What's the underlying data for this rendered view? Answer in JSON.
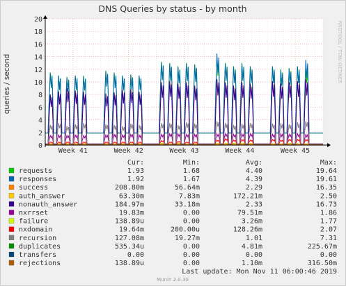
{
  "chart_data": {
    "type": "line",
    "title": "DNS Queries by status - by month",
    "ylabel": "queries / second",
    "side_label": "RRDTOOL / TOBI OETIKER",
    "ylim": [
      0,
      20
    ],
    "y_ticks": [
      0,
      2,
      4,
      6,
      8,
      10,
      12,
      14,
      16,
      18,
      20
    ],
    "x_ticks": [
      "Week 41",
      "Week 42",
      "Week 43",
      "Week 44",
      "Week 45"
    ],
    "x_tick_pos": [
      0.5,
      1.5,
      2.5,
      3.5,
      4.5
    ],
    "x_range": [
      0,
      5.0
    ],
    "active_days": [
      [
        0.1,
        0.25,
        0.4,
        0.55,
        0.7
      ],
      [
        1.1,
        1.25,
        1.4,
        1.55,
        1.7
      ],
      [
        2.1,
        2.25,
        2.4,
        2.55,
        2.7
      ],
      [
        3.1,
        3.25,
        3.4,
        3.55,
        3.7
      ],
      [
        4.1,
        4.25,
        4.4,
        4.55,
        4.7
      ]
    ],
    "series": [
      {
        "name": "requests",
        "color": "#00cc00",
        "peaks": [
          [
            11.5,
            11,
            10.8,
            11,
            11
          ],
          [
            11.8,
            11.5,
            11,
            11.2,
            11
          ],
          [
            13.2,
            13,
            12.5,
            13,
            12.8
          ],
          [
            14,
            13,
            12.5,
            13,
            12.5
          ],
          [
            12.5,
            12,
            12.2,
            12.5,
            12.5
          ]
        ],
        "base": 1.9
      },
      {
        "name": "responses",
        "color": "#0066b3",
        "peaks": [
          [
            11.4,
            11,
            10.7,
            11,
            10.9
          ],
          [
            11.7,
            11.4,
            11,
            11.1,
            11
          ],
          [
            13.1,
            12.9,
            12.4,
            12.9,
            12.7
          ],
          [
            14.5,
            12.9,
            12.4,
            12.9,
            12.4
          ],
          [
            12.4,
            11.9,
            12.1,
            12.4,
            13.5
          ]
        ],
        "base": 1.9
      },
      {
        "name": "success",
        "color": "#ff8000",
        "peaks": [
          [
            8,
            8.5,
            9,
            8.7,
            8.5
          ],
          [
            8.2,
            8.4,
            8.8,
            8.9,
            8.5
          ],
          [
            10,
            10.2,
            9.8,
            10,
            9.5
          ],
          [
            10.5,
            10,
            9.5,
            10,
            9.8
          ],
          [
            10.2,
            9.8,
            10,
            10.2,
            10.5
          ]
        ],
        "base": 0.2
      },
      {
        "name": "auth_answer",
        "color": "#ffcc00",
        "peaks": [
          [
            0.1,
            0.1,
            0.1,
            0.1,
            0.1
          ],
          [
            0.1,
            0.1,
            0.1,
            0.1,
            0.1
          ],
          [
            0.1,
            0.1,
            0.1,
            0.1,
            0.1
          ],
          [
            0.1,
            0.1,
            0.1,
            0.1,
            0.1
          ],
          [
            0.1,
            0.1,
            0.1,
            0.1,
            0.1
          ]
        ],
        "base": 0.05
      },
      {
        "name": "nonauth_answer",
        "color": "#330099",
        "peaks": [
          [
            8,
            8.5,
            9,
            8.6,
            8.4
          ],
          [
            8.1,
            8.3,
            8.7,
            8.8,
            8.4
          ],
          [
            9.9,
            10.1,
            9.7,
            9.9,
            9.4
          ],
          [
            10.4,
            9.9,
            9.4,
            9.9,
            9.7
          ],
          [
            10.1,
            9.7,
            9.9,
            10.1,
            10.4
          ]
        ],
        "base": 0.2
      },
      {
        "name": "nxrrset",
        "color": "#990099",
        "peaks": [
          [
            1.5,
            1.6,
            1.5,
            1.6,
            1.5
          ],
          [
            1.6,
            1.7,
            1.6,
            1.7,
            1.6
          ],
          [
            1.7,
            1.8,
            1.8,
            1.7,
            1.7
          ],
          [
            1.8,
            1.8,
            1.7,
            1.8,
            1.8
          ],
          [
            1.7,
            1.8,
            1.7,
            1.8,
            1.7
          ]
        ],
        "base": 0.1
      },
      {
        "name": "failure",
        "color": "#ccff00",
        "peaks": [
          [
            0.2,
            0.2,
            0.2,
            0.2,
            0.2
          ],
          [
            0.2,
            0.2,
            0.2,
            0.2,
            0.2
          ],
          [
            0.3,
            0.2,
            0.3,
            0.2,
            0.2
          ],
          [
            0.3,
            0.3,
            0.3,
            0.3,
            0.3
          ],
          [
            0.2,
            0.2,
            0.3,
            0.2,
            0.2
          ]
        ],
        "base": 0.05
      },
      {
        "name": "nxdomain",
        "color": "#ff0000",
        "peaks": [
          [
            0.5,
            0.5,
            0.5,
            0.5,
            0.5
          ],
          [
            0.5,
            0.5,
            0.5,
            0.5,
            0.5
          ],
          [
            0.7,
            0.5,
            0.6,
            0.5,
            0.5
          ],
          [
            0.8,
            1,
            0.8,
            0.9,
            0.8
          ],
          [
            0.9,
            0.8,
            0.9,
            0.9,
            0.9
          ]
        ],
        "base": 0.05
      },
      {
        "name": "recursion",
        "color": "#808080",
        "peaks": [
          [
            3.2,
            3.5,
            3,
            3.3,
            3.5
          ],
          [
            3.3,
            3.2,
            3,
            3.4,
            3.2
          ],
          [
            3.5,
            3.5,
            3.2,
            3.6,
            3.4
          ],
          [
            3.8,
            3.5,
            3.2,
            3.4,
            3.5
          ],
          [
            3.4,
            3.5,
            3.3,
            3.6,
            3.8
          ]
        ],
        "base": 0.2
      },
      {
        "name": "duplicates",
        "color": "#008f00",
        "peaks": [
          [
            0,
            0,
            0,
            0,
            0
          ],
          [
            0,
            0,
            0,
            0,
            0
          ],
          [
            0,
            0,
            0,
            0,
            0
          ],
          [
            0,
            0,
            0,
            0,
            0
          ],
          [
            0,
            0,
            0,
            0,
            0
          ]
        ],
        "base": 0
      },
      {
        "name": "transfers",
        "color": "#00487d",
        "peaks": [
          [
            0,
            0,
            0,
            0,
            0
          ],
          [
            0,
            0,
            0,
            0,
            0
          ],
          [
            0,
            0,
            0,
            0,
            0
          ],
          [
            0,
            0,
            0,
            0,
            0
          ],
          [
            0,
            0,
            0,
            0,
            0
          ]
        ],
        "base": 0
      },
      {
        "name": "rejections",
        "color": "#b35a00",
        "peaks": [
          [
            0.2,
            0.2,
            0.2,
            0.2,
            0.2
          ],
          [
            0.2,
            0.2,
            0.2,
            0.2,
            0.2
          ],
          [
            0.2,
            0.2,
            0.2,
            0.2,
            0.2
          ],
          [
            0.2,
            0.2,
            0.2,
            0.2,
            0.2
          ],
          [
            0.2,
            0.2,
            0.2,
            0.2,
            0.2
          ]
        ],
        "base": 0.05
      }
    ]
  },
  "legend_header": {
    "cur": "Cur:",
    "min": "Min:",
    "avg": "Avg:",
    "max": "Max:"
  },
  "legend_rows": [
    {
      "name": "requests",
      "color": "#00cc00",
      "cur": "1.93",
      "min": "1.68",
      "avg": "4.40",
      "max": "19.64"
    },
    {
      "name": "responses",
      "color": "#0066b3",
      "cur": "1.92",
      "min": "1.67",
      "avg": "4.39",
      "max": "19.61"
    },
    {
      "name": "success",
      "color": "#ff8000",
      "cur": "208.80m",
      "min": "56.64m",
      "avg": "2.29",
      "max": "16.35"
    },
    {
      "name": "auth_answer",
      "color": "#ffcc00",
      "cur": "63.30m",
      "min": "7.83m",
      "avg": "172.21m",
      "max": "2.50"
    },
    {
      "name": "nonauth_answer",
      "color": "#330099",
      "cur": "184.97m",
      "min": "33.18m",
      "avg": "2.33",
      "max": "16.73"
    },
    {
      "name": "nxrrset",
      "color": "#990099",
      "cur": "19.83m",
      "min": "0.00",
      "avg": "79.51m",
      "max": "1.86"
    },
    {
      "name": "failure",
      "color": "#ccff00",
      "cur": "138.89u",
      "min": "0.00",
      "avg": "3.26m",
      "max": "1.77"
    },
    {
      "name": "nxdomain",
      "color": "#ff0000",
      "cur": "19.64m",
      "min": "200.00u",
      "avg": "128.26m",
      "max": "2.07"
    },
    {
      "name": "recursion",
      "color": "#808080",
      "cur": "127.08m",
      "min": "19.27m",
      "avg": "1.01",
      "max": "7.31"
    },
    {
      "name": "duplicates",
      "color": "#008f00",
      "cur": "535.34u",
      "min": "0.00",
      "avg": "4.81m",
      "max": "225.67m"
    },
    {
      "name": "transfers",
      "color": "#00487d",
      "cur": "0.00",
      "min": "0.00",
      "avg": "0.00",
      "max": "0.00"
    },
    {
      "name": "rejections",
      "color": "#b35a00",
      "cur": "138.89u",
      "min": "0.00",
      "avg": "1.10m",
      "max": "316.50m"
    }
  ],
  "last_update": "Last update:  Mon Nov 11 06:00:46 2019",
  "footer": "Munin 2.0.30"
}
